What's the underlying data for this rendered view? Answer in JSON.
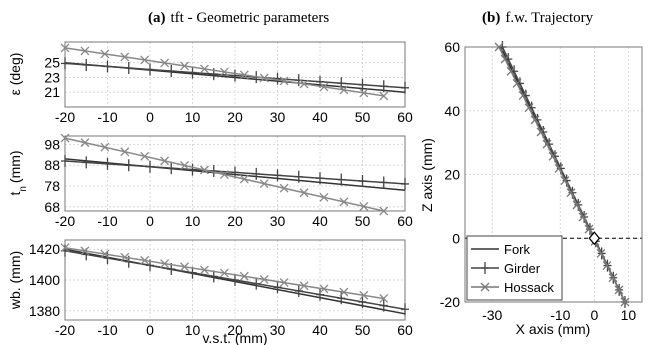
{
  "chart_data": [
    {
      "type": "line",
      "panel": "a",
      "title_bold": "(a)",
      "title": "tft - Geometric parameters",
      "xlabel": "",
      "ylabel": "ε (deg)",
      "xlim": [
        -20,
        60
      ],
      "ylim": [
        19,
        27.8
      ],
      "xticks": [
        -20,
        -10,
        0,
        10,
        20,
        30,
        40,
        50,
        60
      ],
      "yticks": [
        21,
        23,
        25
      ],
      "grid": true,
      "series": [
        {
          "name": "Fork",
          "marker": "none",
          "color": "#333333",
          "x": [
            -20,
            60
          ],
          "y": [
            25.0,
            21.0
          ]
        },
        {
          "name": "Girder",
          "marker": "plus",
          "color": "#444444",
          "x": [
            -20,
            60
          ],
          "y": [
            24.9,
            21.6
          ]
        },
        {
          "name": "Hossack",
          "marker": "x",
          "color": "#888888",
          "x": [
            -20,
            55
          ],
          "y": [
            27.0,
            20.5
          ]
        }
      ]
    },
    {
      "type": "line",
      "panel": "a",
      "xlabel": "",
      "ylabel": "t_n (mm)",
      "ylabel_main": "t",
      "ylabel_sub": "n",
      "ylabel_unit": "(mm)",
      "xlim": [
        -20,
        60
      ],
      "ylim": [
        66,
        102
      ],
      "xticks": [
        -20,
        -10,
        0,
        10,
        20,
        30,
        40,
        50,
        60
      ],
      "yticks": [
        68,
        78,
        88,
        98
      ],
      "grid": true,
      "series": [
        {
          "name": "Fork",
          "marker": "none",
          "color": "#333333",
          "x": [
            -20,
            60
          ],
          "y": [
            91.0,
            76.0
          ]
        },
        {
          "name": "Girder",
          "marker": "plus",
          "color": "#444444",
          "x": [
            -20,
            60
          ],
          "y": [
            90.0,
            79.0
          ]
        },
        {
          "name": "Hossack",
          "marker": "x",
          "color": "#888888",
          "x": [
            -20,
            55
          ],
          "y": [
            101.0,
            66.0
          ]
        }
      ]
    },
    {
      "type": "line",
      "panel": "a",
      "xlabel": "v.s.t. (mm)",
      "ylabel": "wb. (mm)",
      "xlim": [
        -20,
        60
      ],
      "ylim": [
        1374,
        1426
      ],
      "xticks": [
        -20,
        -10,
        0,
        10,
        20,
        30,
        40,
        50,
        60
      ],
      "yticks": [
        1380,
        1400,
        1420
      ],
      "grid": true,
      "series": [
        {
          "name": "Fork",
          "marker": "none",
          "color": "#333333",
          "x": [
            -20,
            60
          ],
          "y": [
            1420.0,
            1378.0
          ]
        },
        {
          "name": "Girder",
          "marker": "plus",
          "color": "#444444",
          "x": [
            -20,
            60
          ],
          "y": [
            1419.0,
            1381.0
          ]
        },
        {
          "name": "Hossack",
          "marker": "x",
          "color": "#888888",
          "x": [
            -20,
            55
          ],
          "y": [
            1421.0,
            1388.0
          ]
        }
      ]
    },
    {
      "type": "line",
      "panel": "b",
      "title_bold": "(b)",
      "title": "f.w. Trajectory",
      "xlabel": "X axis (mm)",
      "ylabel": "Z axis (mm)",
      "xlim": [
        -38,
        14
      ],
      "ylim": [
        -20,
        60
      ],
      "xticks": [
        -30,
        -10,
        0,
        10
      ],
      "yticks": [
        -20,
        0,
        20,
        40,
        60
      ],
      "grid": true,
      "reference_line_y": 0,
      "marker_point": {
        "x": 0,
        "y": 0,
        "shape": "diamond"
      },
      "legend": "bottom-left",
      "series": [
        {
          "name": "Fork",
          "marker": "none",
          "color": "#333333",
          "x": [
            -27.5,
            9.0
          ],
          "y": [
            60,
            -20
          ]
        },
        {
          "name": "Girder",
          "marker": "plus",
          "color": "#444444",
          "x": [
            -27.0,
            9.0
          ],
          "y": [
            60,
            -20
          ]
        },
        {
          "name": "Hossack",
          "marker": "x",
          "color": "#777777",
          "x": [
            -28.0,
            9.0
          ],
          "y": [
            60,
            -20
          ]
        }
      ]
    }
  ]
}
